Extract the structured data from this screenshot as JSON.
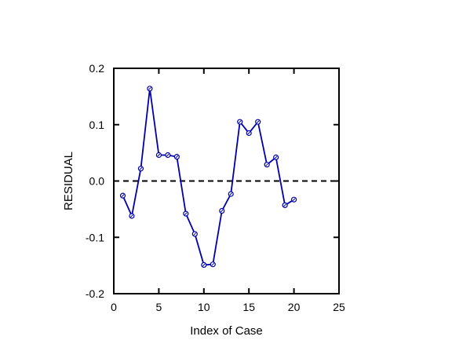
{
  "chart_data": {
    "type": "line",
    "title": "",
    "xlabel": "Index of Case",
    "ylabel": "RESIDUAL",
    "xlim": [
      0,
      25
    ],
    "ylim": [
      -0.2,
      0.2
    ],
    "x_ticks": [
      0,
      5,
      10,
      15,
      20,
      25
    ],
    "x_tick_labels": [
      "0",
      "5",
      "10",
      "15",
      "20",
      "25"
    ],
    "y_ticks": [
      -0.2,
      -0.1,
      0.0,
      0.1,
      0.2
    ],
    "y_tick_labels": [
      "-0.2",
      "-0.1",
      "0.0",
      "0.1",
      "0.2"
    ],
    "grid": false,
    "reference_line": {
      "y": 0,
      "style": "dashed",
      "color": "#000000"
    },
    "series": [
      {
        "color": "#0000aa",
        "marker": "circle",
        "x": [
          1,
          2,
          3,
          4,
          5,
          6,
          7,
          8,
          9,
          10,
          11,
          12,
          13,
          14,
          15,
          16,
          17,
          18,
          19,
          20
        ],
        "y": [
          -0.026,
          -0.062,
          0.022,
          0.164,
          0.046,
          0.046,
          0.043,
          -0.058,
          -0.094,
          -0.149,
          -0.148,
          -0.053,
          -0.023,
          0.105,
          0.085,
          0.105,
          0.029,
          0.042,
          -0.043,
          -0.033
        ]
      }
    ]
  }
}
